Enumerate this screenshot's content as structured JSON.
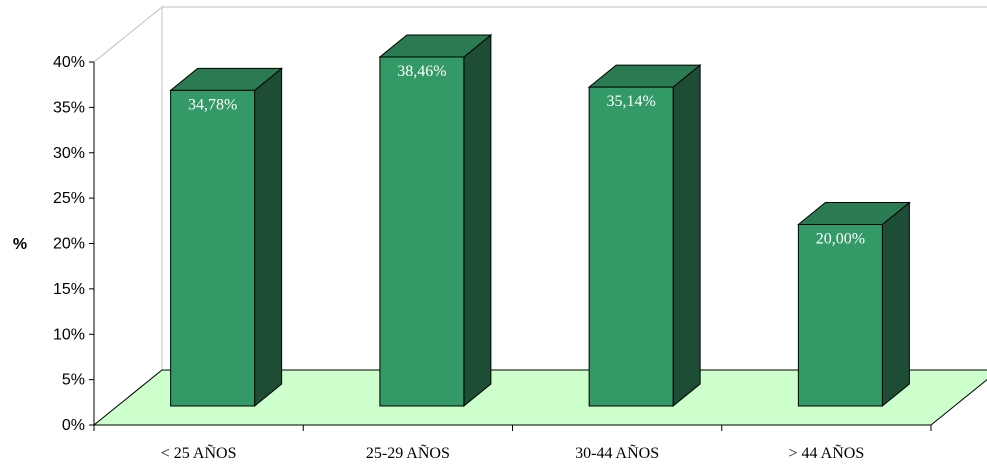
{
  "chart_data": {
    "type": "bar",
    "style": "3d-column",
    "categories": [
      "< 25 AÑOS",
      "25-29 AÑOS",
      "30-44 AÑOS",
      "> 44 AÑOS"
    ],
    "values": [
      34.78,
      38.46,
      35.14,
      20.0
    ],
    "data_labels": [
      "34,78%",
      "38,46%",
      "35,14%",
      "20,00%"
    ],
    "ylabel": "%",
    "ylim": [
      0,
      40
    ],
    "yticks": [
      "0%",
      "5%",
      "10%",
      "15%",
      "20%",
      "25%",
      "30%",
      "35%",
      "40%"
    ],
    "grid": false,
    "legend": "none",
    "colors": {
      "bar_front": "#339966",
      "bar_top": "#2a7a52",
      "bar_side": "#1e4d35",
      "floor": "#ccffcc",
      "walls": "#ffffff",
      "wall_edge": "#c0c0c0"
    }
  }
}
